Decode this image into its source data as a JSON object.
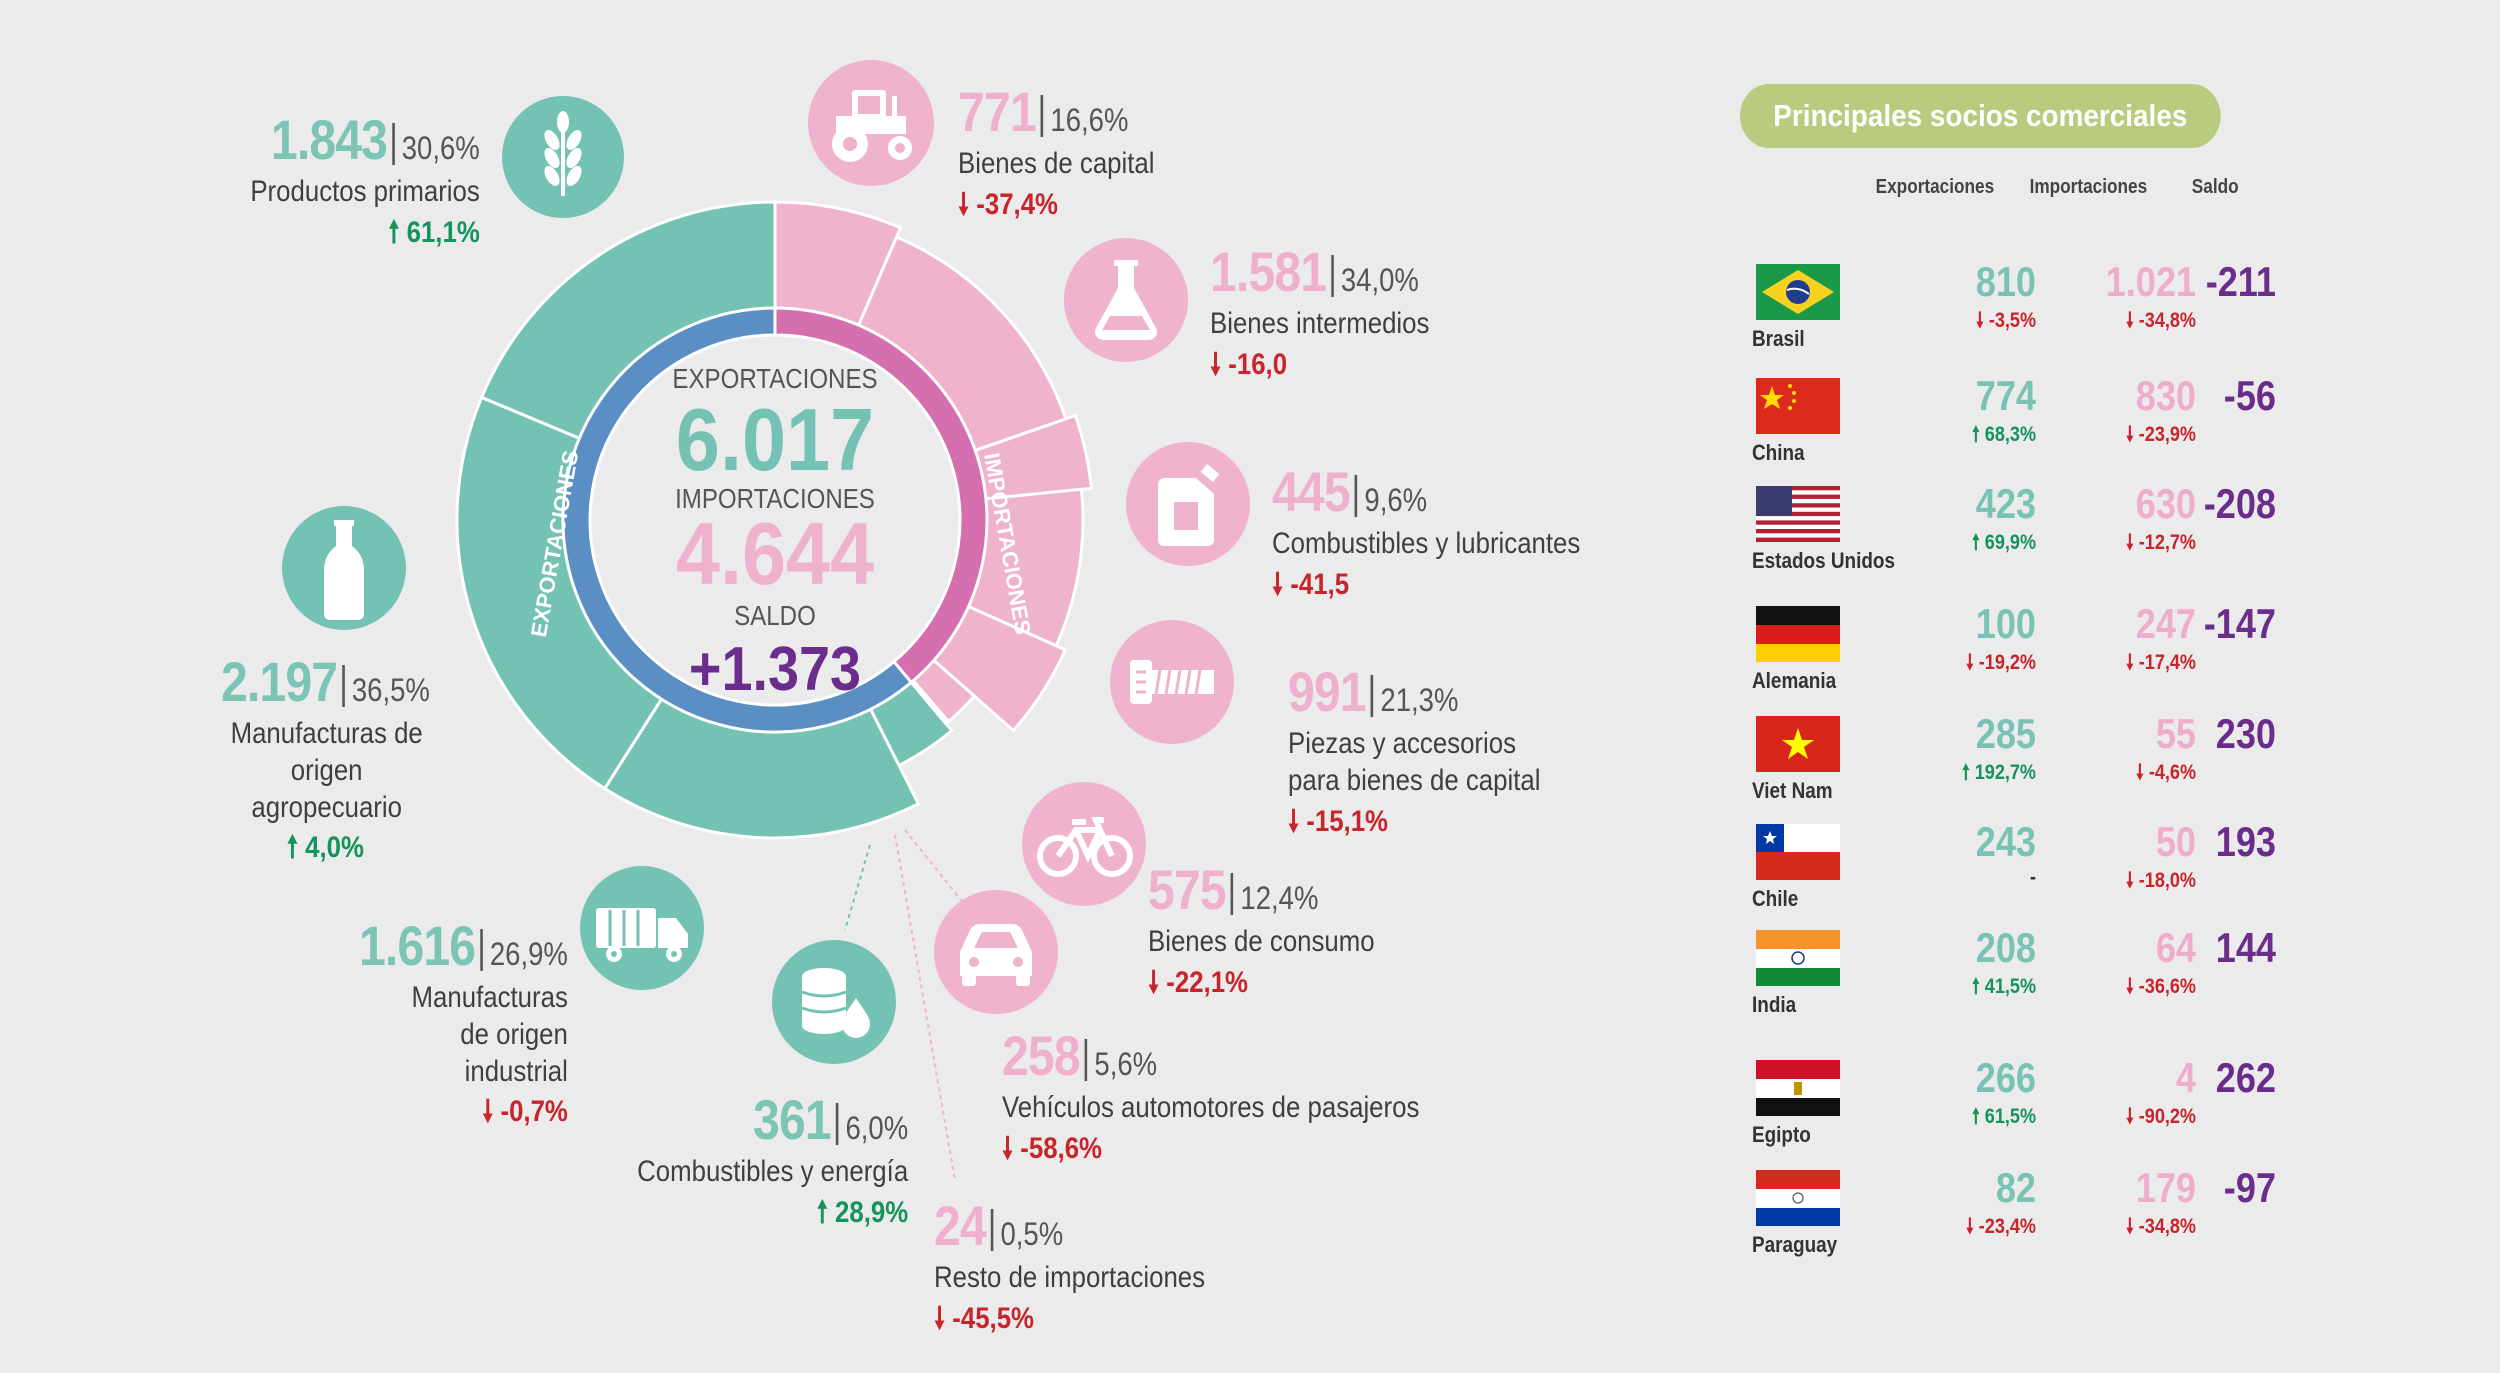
{
  "center": {
    "exp_label": "EXPORTACIONES",
    "exp_value": "6.017",
    "imp_label": "IMPORTACIONES",
    "imp_value": "4.644",
    "saldo_label": "SALDO",
    "saldo_value": "+1.373",
    "ring_exp_label": "EXPORTACIONES",
    "ring_imp_label": "IMPORTACIONES"
  },
  "colors": {
    "exports": "#74c2b3",
    "exports_inner": "#5b8fc4",
    "imports": "#efb3cd",
    "imports_inner": "#d66fb0",
    "saldo": "#6b2d8c",
    "up": "#14935a",
    "down": "#c8242b",
    "pill": "#b9cb7e"
  },
  "exports": [
    {
      "icon": "wheat-icon",
      "value": "1.843",
      "pct": "30,6%",
      "label": "Productos primarios",
      "change": "61,1%",
      "direction": "up",
      "share": 30.6
    },
    {
      "icon": "bottle-icon",
      "value": "2.197",
      "pct": "36,5%",
      "label": "Manufacturas de origen agropecuario",
      "change": "4,0%",
      "direction": "up",
      "share": 36.5
    },
    {
      "icon": "truck-icon",
      "value": "1.616",
      "pct": "26,9%",
      "label": "Manufacturas de origen industrial",
      "change": "-0,7%",
      "direction": "down",
      "share": 26.9
    },
    {
      "icon": "fuel-drop-icon",
      "value": "361",
      "pct": "6,0%",
      "label": "Combustibles y energía",
      "change": "28,9%",
      "direction": "up",
      "share": 6.0
    }
  ],
  "imports": [
    {
      "icon": "tractor-icon",
      "value": "771",
      "pct": "16,6%",
      "label": "Bienes de capital",
      "change": "-37,4%",
      "direction": "down",
      "share": 16.6
    },
    {
      "icon": "flask-icon",
      "value": "1.581",
      "pct": "34,0%",
      "label": "Bienes intermedios",
      "change": "-16,0",
      "direction": "down",
      "share": 34.0
    },
    {
      "icon": "jerrycan-icon",
      "value": "445",
      "pct": "9,6%",
      "label": "Combustibles y lubricantes",
      "change": "-41,5",
      "direction": "down",
      "share": 9.6
    },
    {
      "icon": "screw-icon",
      "value": "991",
      "pct": "21,3%",
      "label": "Piezas y accesorios para bienes de capital",
      "change": "-15,1%",
      "direction": "down",
      "share": 21.3
    },
    {
      "icon": "bicycle-icon",
      "value": "575",
      "pct": "12,4%",
      "label": "Bienes de consumo",
      "change": "-22,1%",
      "direction": "down",
      "share": 12.4
    },
    {
      "icon": "car-icon",
      "value": "258",
      "pct": "5,6%",
      "label": "Vehículos automotores de pasajeros",
      "change": "-58,6%",
      "direction": "down",
      "share": 5.6
    },
    {
      "icon": "",
      "value": "24",
      "pct": "0,5%",
      "label": "Resto de importaciones",
      "change": "-45,5%",
      "direction": "down",
      "share": 0.5
    }
  ],
  "partners": {
    "title": "Principales socios comerciales",
    "headers": {
      "exports": "Exportaciones",
      "imports": "Importaciones",
      "saldo": "Saldo"
    },
    "rows": [
      {
        "country": "Brasil",
        "flag": "brazil-flag",
        "exp": "810",
        "exp_chg": "-3,5%",
        "exp_dir": "down",
        "imp": "1.021",
        "imp_chg": "-34,8%",
        "imp_dir": "down",
        "saldo": "-211"
      },
      {
        "country": "China",
        "flag": "china-flag",
        "exp": "774",
        "exp_chg": "68,3%",
        "exp_dir": "up",
        "imp": "830",
        "imp_chg": "-23,9%",
        "imp_dir": "down",
        "saldo": "-56"
      },
      {
        "country": "Estados Unidos",
        "flag": "usa-flag",
        "exp": "423",
        "exp_chg": "69,9%",
        "exp_dir": "up",
        "imp": "630",
        "imp_chg": "-12,7%",
        "imp_dir": "down",
        "saldo": "-208"
      },
      {
        "country": "Alemania",
        "flag": "germany-flag",
        "exp": "100",
        "exp_chg": "-19,2%",
        "exp_dir": "down",
        "imp": "247",
        "imp_chg": "-17,4%",
        "imp_dir": "down",
        "saldo": "-147"
      },
      {
        "country": "Viet Nam",
        "flag": "vietnam-flag",
        "exp": "285",
        "exp_chg": "192,7%",
        "exp_dir": "up",
        "imp": "55",
        "imp_chg": "-4,6%",
        "imp_dir": "down",
        "saldo": "230"
      },
      {
        "country": "Chile",
        "flag": "chile-flag",
        "exp": "243",
        "exp_chg": "-",
        "exp_dir": "none",
        "imp": "50",
        "imp_chg": "-18,0%",
        "imp_dir": "down",
        "saldo": "193"
      },
      {
        "country": "India",
        "flag": "india-flag",
        "exp": "208",
        "exp_chg": "41,5%",
        "exp_dir": "up",
        "imp": "64",
        "imp_chg": "-36,6%",
        "imp_dir": "down",
        "saldo": "144"
      },
      {
        "country": "Egipto",
        "flag": "egypt-flag",
        "exp": "266",
        "exp_chg": "61,5%",
        "exp_dir": "up",
        "imp": "4",
        "imp_chg": "-90,2%",
        "imp_dir": "down",
        "saldo": "262"
      },
      {
        "country": "Paraguay",
        "flag": "paraguay-flag",
        "exp": "82",
        "exp_chg": "-23,4%",
        "exp_dir": "down",
        "imp": "179",
        "imp_chg": "-34,8%",
        "imp_dir": "down",
        "saldo": "-97"
      }
    ]
  }
}
